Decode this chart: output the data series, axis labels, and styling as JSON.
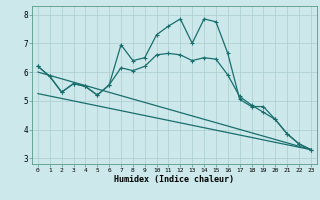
{
  "title": "",
  "xlabel": "Humidex (Indice chaleur)",
  "background_color": "#cce8ea",
  "grid_color": "#aacccc",
  "line_color": "#1a6e6e",
  "xlim": [
    -0.5,
    23.5
  ],
  "ylim": [
    2.8,
    8.3
  ],
  "yticks": [
    3,
    4,
    5,
    6,
    7,
    8
  ],
  "xticks": [
    0,
    1,
    2,
    3,
    4,
    5,
    6,
    7,
    8,
    9,
    10,
    11,
    12,
    13,
    14,
    15,
    16,
    17,
    18,
    19,
    20,
    21,
    22,
    23
  ],
  "line1_x": [
    0,
    1,
    2,
    3,
    4,
    5,
    6,
    7,
    8,
    9,
    10,
    11,
    12,
    13,
    14,
    15,
    16,
    17,
    18,
    19,
    20,
    21,
    22,
    23
  ],
  "line1_y": [
    6.2,
    5.85,
    5.3,
    5.6,
    5.5,
    5.2,
    5.55,
    6.95,
    6.4,
    6.5,
    7.3,
    7.6,
    7.85,
    7.0,
    7.85,
    7.75,
    6.65,
    5.05,
    4.8,
    4.8,
    4.35,
    3.85,
    3.5,
    3.3
  ],
  "line2_x": [
    0,
    1,
    2,
    3,
    4,
    5,
    6,
    7,
    8,
    9,
    10,
    11,
    12,
    13,
    14,
    15,
    16,
    17,
    18,
    19,
    20,
    21,
    22,
    23
  ],
  "line2_y": [
    6.2,
    5.85,
    5.3,
    5.6,
    5.5,
    5.2,
    5.55,
    6.15,
    6.05,
    6.2,
    6.6,
    6.65,
    6.6,
    6.4,
    6.5,
    6.45,
    5.9,
    5.15,
    4.85,
    4.6,
    4.35,
    3.85,
    3.5,
    3.3
  ],
  "line3_x": [
    0,
    23
  ],
  "line3_y": [
    6.0,
    3.3
  ],
  "line4_x": [
    0,
    23
  ],
  "line4_y": [
    5.25,
    3.3
  ]
}
